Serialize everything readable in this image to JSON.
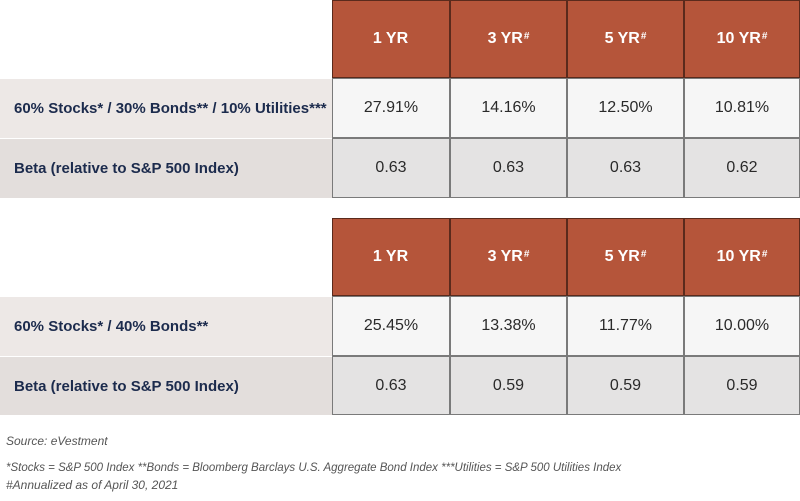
{
  "table1": {
    "headers": [
      {
        "main": "1 YR",
        "sup": ""
      },
      {
        "main": "3 YR",
        "sup": "#"
      },
      {
        "main": "5 YR",
        "sup": "#"
      },
      {
        "main": "10 YR",
        "sup": "#"
      }
    ],
    "rows": [
      {
        "label": "60% Stocks* / 30% Bonds** / 10% Utilities***",
        "values": [
          "27.91%",
          "14.16%",
          "12.50%",
          "10.81%"
        ]
      },
      {
        "label": "Beta (relative to S&P 500 Index)",
        "values": [
          "0.63",
          "0.63",
          "0.63",
          "0.62"
        ]
      }
    ]
  },
  "table2": {
    "headers": [
      {
        "main": "1 YR",
        "sup": ""
      },
      {
        "main": "3 YR",
        "sup": "#"
      },
      {
        "main": "5 YR",
        "sup": "#"
      },
      {
        "main": "10 YR",
        "sup": "#"
      }
    ],
    "rows": [
      {
        "label": "60% Stocks* / 40% Bonds**",
        "values": [
          "25.45%",
          "13.38%",
          "11.77%",
          "10.00%"
        ]
      },
      {
        "label": "Beta (relative to S&P 500 Index)",
        "values": [
          "0.63",
          "0.59",
          "0.59",
          "0.59"
        ]
      }
    ]
  },
  "footnotes": {
    "source": "Source: eVestment",
    "definitions": "*Stocks = S&P 500 Index  **Bonds = Bloomberg Barclays U.S. Aggregate Bond Index   ***Utilities = S&P 500 Utilities Index",
    "annualized": "#Annualized as of April 30, 2021"
  },
  "colors": {
    "header_bg": "#b5553a",
    "label_text": "#1c2b4d",
    "label_bg": "#ede8e6",
    "value_bg": "#f6f6f6",
    "value_bg_alt": "#e4e3e3"
  }
}
